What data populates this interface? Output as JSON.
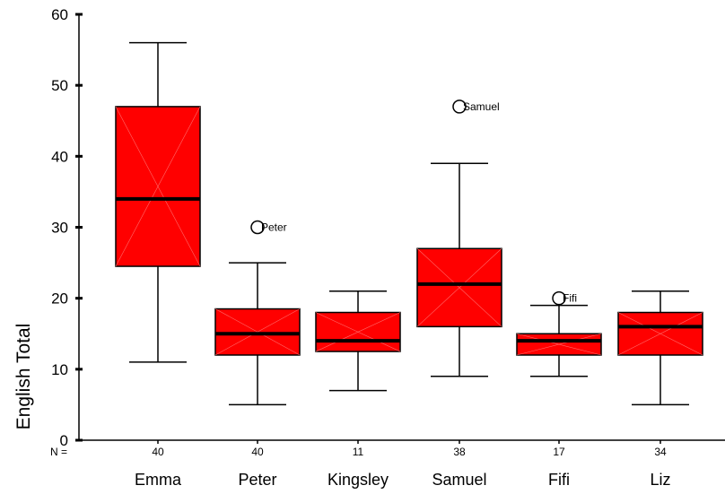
{
  "chart_data": {
    "type": "boxplot",
    "xlabel": "",
    "ylabel": "English Total",
    "ylim": [
      0,
      60
    ],
    "yticks": [
      0,
      10,
      20,
      30,
      40,
      50,
      60
    ],
    "n_prefix": "N =",
    "box_color": "#ff0000",
    "categories": [
      {
        "name": "Emma",
        "n": "40",
        "min": 11,
        "q1": 24.5,
        "median": 34,
        "q3": 47,
        "max": 56,
        "outliers": []
      },
      {
        "name": "Peter",
        "n": "40",
        "min": 5,
        "q1": 12,
        "median": 15,
        "q3": 18.5,
        "max": 25,
        "outliers": [
          {
            "value": 30,
            "label": "Peter"
          }
        ]
      },
      {
        "name": "Kingsley",
        "n": "11",
        "min": 7,
        "q1": 12.5,
        "median": 14,
        "q3": 18,
        "max": 21,
        "outliers": []
      },
      {
        "name": "Samuel",
        "n": "38",
        "min": 9,
        "q1": 16,
        "median": 22,
        "q3": 27,
        "max": 39,
        "outliers": [
          {
            "value": 47,
            "label": "Samuel"
          }
        ]
      },
      {
        "name": "Fifi",
        "n": "17",
        "min": 9,
        "q1": 12,
        "median": 14,
        "q3": 15,
        "max": 19,
        "outliers": [
          {
            "value": 20,
            "label": "Fifi"
          }
        ]
      },
      {
        "name": "Liz",
        "n": "34",
        "min": 5,
        "q1": 12,
        "median": 16,
        "q3": 18,
        "max": 21,
        "outliers": []
      }
    ]
  }
}
